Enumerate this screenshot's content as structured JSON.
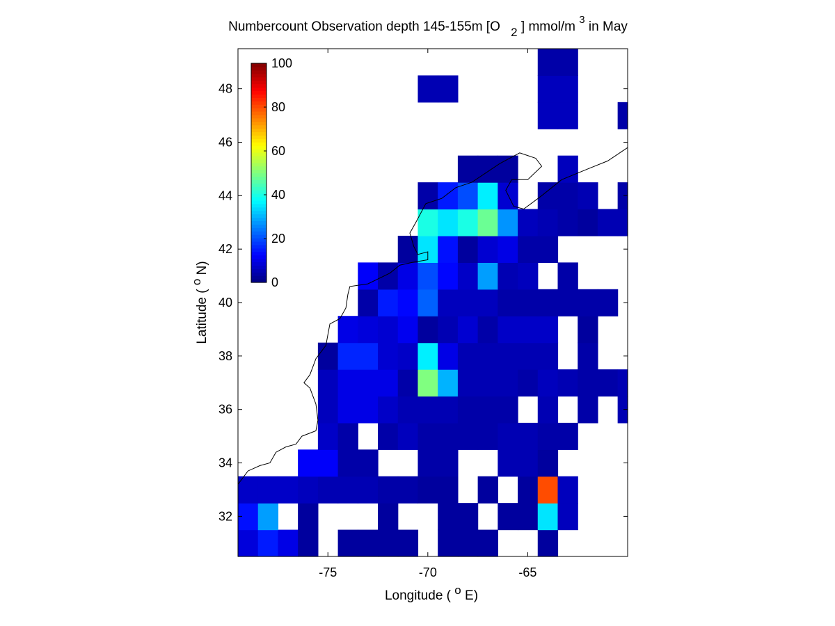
{
  "chart_data": {
    "type": "heatmap",
    "title": {
      "main": "Numbercount Observation depth 145-155m [O",
      "sub": "2",
      "unit_start": "] mmol/m",
      "sup": "3",
      "unit_end": " in May"
    },
    "xlabel": {
      "start": "Longitude ( ",
      "sup": "o",
      "end": "E)"
    },
    "ylabel": {
      "start": "Latitude ( ",
      "sup": "o",
      "end": "N)"
    },
    "xlim": [
      -79.5,
      -60.0
    ],
    "ylim": [
      30.5,
      49.5
    ],
    "x_ticks": [
      "-75",
      "-70",
      "-65"
    ],
    "x_tick_values": [
      -75,
      -70,
      -65
    ],
    "y_ticks": [
      "32",
      "34",
      "36",
      "38",
      "40",
      "42",
      "44",
      "46",
      "48"
    ],
    "y_tick_values": [
      32,
      34,
      36,
      38,
      40,
      42,
      44,
      46,
      48
    ],
    "colorbar": {
      "min": 0,
      "max": 100,
      "ticks": [
        "0",
        "20",
        "40",
        "60",
        "80",
        "100"
      ],
      "tick_values": [
        0,
        20,
        40,
        60,
        80,
        100
      ],
      "colormap": "jet",
      "location": "top-left inside"
    },
    "grid": false,
    "cell_size_deg": 1,
    "grid_origin": {
      "lon": -79.5,
      "lat": 30.5
    },
    "grid_columns": [
      "-79.5",
      "-78.5",
      "-77.5",
      "-76.5",
      "-75.5",
      "-74.5",
      "-73.5",
      "-72.5",
      "-71.5",
      "-70.5",
      "-69.5",
      "-68.5",
      "-67.5",
      "-66.5",
      "-65.5",
      "-64.5",
      "-63.5",
      "-62.5",
      "-61.5",
      "-60.5"
    ],
    "grid_rows_note": "row 0 = 30.5-31.5 N (south), row 18 = 48.5-49.5 N (north); null = no data",
    "values": [
      [
        9,
        15,
        10,
        3,
        null,
        3,
        3,
        3,
        3,
        null,
        3,
        3,
        3,
        null,
        null,
        3,
        null,
        null,
        null,
        null
      ],
      [
        14,
        28,
        null,
        3,
        null,
        null,
        null,
        3,
        null,
        null,
        3,
        3,
        null,
        3,
        3,
        35,
        6,
        null,
        null,
        null
      ],
      [
        7,
        7,
        7,
        6,
        5,
        5,
        5,
        4,
        4,
        3,
        3,
        null,
        3,
        null,
        3,
        80,
        6,
        null,
        null,
        null
      ],
      [
        null,
        null,
        null,
        12,
        12,
        4,
        4,
        null,
        null,
        4,
        4,
        null,
        null,
        5,
        5,
        3,
        null,
        null,
        null,
        null
      ],
      [
        null,
        null,
        null,
        null,
        7,
        4,
        null,
        4,
        6,
        4,
        4,
        4,
        4,
        5,
        5,
        4,
        4,
        null,
        null,
        null
      ],
      [
        null,
        null,
        null,
        null,
        6,
        10,
        10,
        7,
        5,
        5,
        5,
        4,
        4,
        4,
        null,
        5,
        null,
        4,
        null,
        5
      ],
      [
        null,
        null,
        null,
        null,
        6,
        10,
        10,
        10,
        4,
        50,
        30,
        5,
        5,
        5,
        4,
        6,
        5,
        4,
        4,
        5
      ],
      [
        null,
        null,
        null,
        null,
        3,
        16,
        16,
        8,
        7,
        36,
        10,
        5,
        5,
        5,
        5,
        5,
        null,
        4,
        null,
        null
      ],
      [
        null,
        null,
        null,
        null,
        null,
        10,
        9,
        8,
        11,
        3,
        5,
        8,
        4,
        7,
        7,
        7,
        null,
        3,
        null,
        null
      ],
      [
        null,
        null,
        null,
        null,
        null,
        null,
        4,
        15,
        13,
        22,
        6,
        6,
        6,
        4,
        4,
        4,
        4,
        4,
        4,
        null
      ],
      [
        null,
        null,
        null,
        null,
        null,
        null,
        12,
        4,
        10,
        20,
        13,
        7,
        28,
        5,
        6,
        null,
        4,
        null,
        null,
        null
      ],
      [
        null,
        null,
        null,
        null,
        null,
        null,
        null,
        null,
        3,
        35,
        14,
        3,
        8,
        10,
        4,
        4,
        null,
        null,
        null,
        null
      ],
      [
        null,
        null,
        null,
        null,
        null,
        null,
        null,
        null,
        null,
        40,
        35,
        40,
        48,
        27,
        6,
        5,
        4,
        3,
        5,
        5
      ],
      [
        null,
        null,
        null,
        null,
        null,
        null,
        null,
        null,
        null,
        4,
        15,
        20,
        36,
        8,
        null,
        4,
        4,
        5,
        null,
        4
      ],
      [
        null,
        null,
        null,
        null,
        null,
        null,
        null,
        null,
        null,
        null,
        null,
        3,
        3,
        3,
        null,
        null,
        6,
        null,
        null,
        null
      ],
      [
        null,
        null,
        null,
        null,
        null,
        null,
        null,
        null,
        null,
        null,
        null,
        null,
        null,
        null,
        null,
        null,
        null,
        null,
        null,
        null
      ],
      [
        null,
        null,
        null,
        null,
        null,
        null,
        null,
        null,
        null,
        null,
        null,
        null,
        null,
        null,
        null,
        6,
        6,
        null,
        null,
        4
      ],
      [
        null,
        null,
        null,
        null,
        null,
        null,
        null,
        null,
        null,
        5,
        5,
        null,
        null,
        null,
        null,
        6,
        6,
        null,
        null,
        null
      ],
      [
        null,
        null,
        null,
        null,
        null,
        null,
        null,
        null,
        null,
        null,
        null,
        null,
        null,
        null,
        null,
        4,
        4,
        null,
        null,
        null
      ]
    ],
    "coastline_points": [
      [
        -79.5,
        33.2
      ],
      [
        -79.0,
        33.7
      ],
      [
        -78.4,
        33.9
      ],
      [
        -77.9,
        34.0
      ],
      [
        -77.6,
        34.4
      ],
      [
        -77.1,
        34.6
      ],
      [
        -76.6,
        34.7
      ],
      [
        -76.3,
        35.0
      ],
      [
        -75.6,
        35.2
      ],
      [
        -75.5,
        35.6
      ],
      [
        -75.6,
        36.2
      ],
      [
        -75.9,
        36.8
      ],
      [
        -76.2,
        37.0
      ],
      [
        -75.9,
        37.3
      ],
      [
        -75.6,
        37.9
      ],
      [
        -75.1,
        38.4
      ],
      [
        -75.0,
        38.8
      ],
      [
        -74.9,
        39.2
      ],
      [
        -74.4,
        39.4
      ],
      [
        -74.1,
        39.8
      ],
      [
        -74.0,
        40.3
      ],
      [
        -73.9,
        40.6
      ],
      [
        -73.0,
        40.7
      ],
      [
        -71.9,
        41.1
      ],
      [
        -71.4,
        41.4
      ],
      [
        -70.8,
        41.5
      ],
      [
        -70.0,
        41.6
      ],
      [
        -70.0,
        41.9
      ],
      [
        -70.5,
        41.8
      ],
      [
        -70.7,
        42.1
      ],
      [
        -70.9,
        42.6
      ],
      [
        -70.6,
        43.0
      ],
      [
        -70.1,
        43.7
      ],
      [
        -69.3,
        43.9
      ],
      [
        -68.6,
        44.3
      ],
      [
        -67.8,
        44.5
      ],
      [
        -67.0,
        44.9
      ],
      [
        -66.4,
        45.2
      ],
      [
        -65.4,
        45.6
      ],
      [
        -64.6,
        45.4
      ],
      [
        -64.3,
        45.1
      ],
      [
        -65.0,
        44.6
      ],
      [
        -65.8,
        44.6
      ],
      [
        -66.1,
        44.2
      ],
      [
        -65.7,
        43.6
      ],
      [
        -65.2,
        43.5
      ],
      [
        -64.3,
        44.0
      ],
      [
        -63.3,
        44.6
      ],
      [
        -62.0,
        45.0
      ],
      [
        -61.0,
        45.3
      ],
      [
        -60.0,
        45.8
      ]
    ]
  }
}
